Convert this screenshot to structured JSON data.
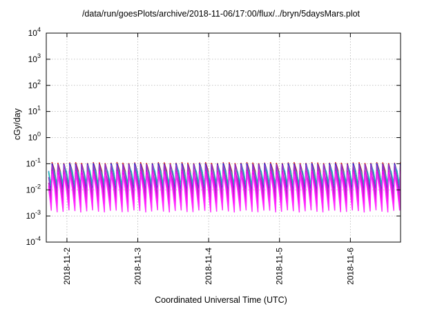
{
  "chart_data": {
    "type": "line",
    "title": "/data/run/goesPlots/archive/2018-11-06/17:00/flux/../bryn/5daysMars.plot",
    "xlabel": "Coordinated Universal Time (UTC)",
    "ylabel": "cGy/day",
    "yscale": "log",
    "ylim": [
      0.0001,
      10000
    ],
    "y_ticks": [
      {
        "base": "10",
        "exp": "-4",
        "value": 0.0001
      },
      {
        "base": "10",
        "exp": "-3",
        "value": 0.001
      },
      {
        "base": "10",
        "exp": "-2",
        "value": 0.01
      },
      {
        "base": "10",
        "exp": "-1",
        "value": 0.1
      },
      {
        "base": "10",
        "exp": "0",
        "value": 1
      },
      {
        "base": "10",
        "exp": "1",
        "value": 10
      },
      {
        "base": "10",
        "exp": "2",
        "value": 100
      },
      {
        "base": "10",
        "exp": "3",
        "value": 1000
      },
      {
        "base": "10",
        "exp": "4",
        "value": 10000
      }
    ],
    "xlim": [
      "2018-11-01T17:00",
      "2018-11-06T17:00"
    ],
    "x_ticks": [
      "2018-11-2",
      "2018-11-3",
      "2018-11-4",
      "2018-11-5",
      "2018-11-6"
    ],
    "grid": true,
    "legend": "none",
    "pattern": {
      "cycles_per_day": 12,
      "series_peak_trough": [
        {
          "peak": 0.11,
          "trough": 0.012,
          "color": "#d62828"
        },
        {
          "peak": 0.1,
          "trough": 0.01,
          "color": "#2a2adb"
        },
        {
          "peak": 0.085,
          "trough": 0.014,
          "color": "#2a9bd8"
        },
        {
          "peak": 0.07,
          "trough": 0.016,
          "color": "#18c4b0"
        },
        {
          "peak": 0.09,
          "trough": 0.006,
          "color": "#9b30c8"
        },
        {
          "peak": 0.06,
          "trough": 0.0035,
          "color": "#c020c0"
        },
        {
          "peak": 0.05,
          "trough": 0.0022,
          "color": "#ff00ff"
        },
        {
          "peak": 0.04,
          "trough": 0.0015,
          "color": "#ff30ff"
        }
      ]
    }
  }
}
